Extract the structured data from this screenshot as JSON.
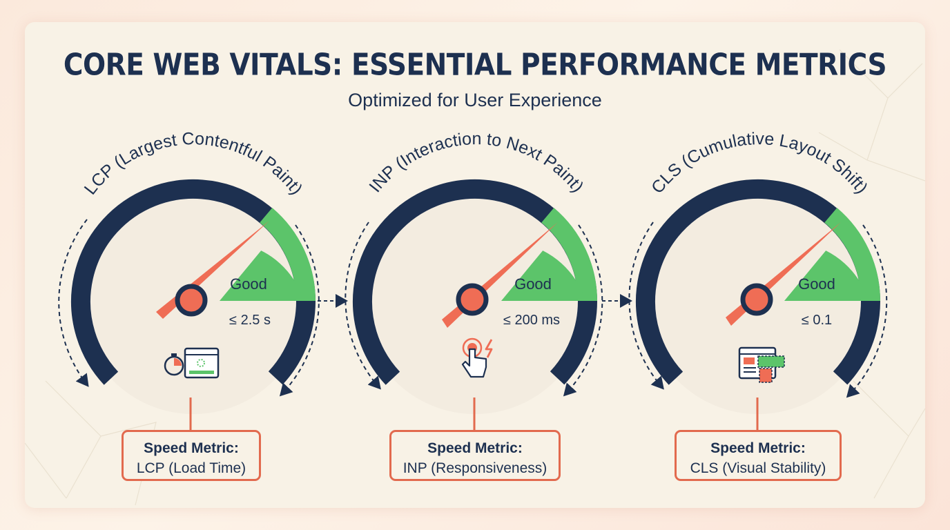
{
  "title": "CORE WEB VITALS: ESSENTIAL PERFORMANCE METRICS",
  "subtitle": "Optimized for User Experience",
  "gauges": [
    {
      "name": "LCP (Largest Contentful Paint)",
      "zone_label": "Good",
      "threshold": "≤ 2.5 s",
      "icon": "stopwatch-loading-window-icon",
      "box_heading": "Speed Metric:",
      "box_text": "LCP (Load Time)"
    },
    {
      "name": "INP (Interaction to Next Paint)",
      "zone_label": "Good",
      "threshold": "≤ 200 ms",
      "icon": "tap-hand-lightning-icon",
      "box_heading": "Speed Metric:",
      "box_text": "INP (Responsiveness)"
    },
    {
      "name": "CLS (Cumulative Layout Shift)",
      "zone_label": "Good",
      "threshold": "≤ 0.1",
      "icon": "layout-shift-window-icon",
      "box_heading": "Speed Metric:",
      "box_text": "CLS (Visual Stability)"
    }
  ],
  "colors": {
    "navy": "#1d3050",
    "good_green": "#5cc46a",
    "needle_red": "#ef6d55",
    "background": "#f8f2e6",
    "accent": "#e26a4e"
  }
}
